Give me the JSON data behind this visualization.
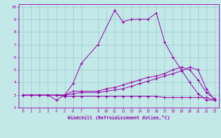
{
  "xlabel": "Windchill (Refroidissement éolien,°C)",
  "background_color": "#c2e8e8",
  "grid_color": "#a0cccc",
  "line_color": "#9900aa",
  "marker": "+",
  "xlim": [
    -0.5,
    23.5
  ],
  "ylim": [
    2,
    10.2
  ],
  "xticks": [
    0,
    1,
    2,
    3,
    4,
    5,
    6,
    7,
    9,
    10,
    11,
    12,
    13,
    14,
    15,
    16,
    17,
    18,
    19,
    20,
    21,
    22,
    23
  ],
  "yticks": [
    2,
    3,
    4,
    5,
    6,
    7,
    8,
    9,
    10
  ],
  "lines": [
    {
      "x": [
        0,
        1,
        2,
        3,
        4,
        5,
        6,
        7,
        9,
        11,
        12,
        13,
        14,
        15,
        16,
        17,
        18,
        19,
        20,
        21,
        22,
        23
      ],
      "y": [
        3.0,
        3.0,
        3.0,
        3.0,
        2.6,
        3.0,
        3.9,
        5.5,
        7.0,
        9.7,
        8.8,
        9.0,
        9.0,
        9.0,
        9.5,
        7.2,
        6.0,
        5.0,
        4.0,
        3.1,
        2.6,
        2.6
      ]
    },
    {
      "x": [
        0,
        1,
        2,
        3,
        4,
        5,
        6,
        7,
        9,
        10,
        11,
        12,
        13,
        14,
        15,
        16,
        17,
        18,
        19,
        20,
        21,
        22,
        23
      ],
      "y": [
        3.0,
        3.0,
        3.0,
        3.0,
        3.0,
        3.0,
        3.3,
        3.3,
        3.3,
        3.5,
        3.6,
        3.8,
        4.0,
        4.2,
        4.4,
        4.5,
        4.7,
        5.0,
        5.2,
        5.0,
        4.2,
        3.2,
        2.7
      ]
    },
    {
      "x": [
        0,
        1,
        2,
        3,
        4,
        5,
        6,
        7,
        9,
        10,
        11,
        12,
        13,
        14,
        15,
        16,
        17,
        18,
        19,
        20,
        21,
        22,
        23
      ],
      "y": [
        3.0,
        3.0,
        3.0,
        3.0,
        3.0,
        3.0,
        3.1,
        3.2,
        3.2,
        3.3,
        3.4,
        3.5,
        3.7,
        3.9,
        4.1,
        4.3,
        4.5,
        4.7,
        4.9,
        5.2,
        5.0,
        3.5,
        2.6
      ]
    },
    {
      "x": [
        0,
        1,
        2,
        3,
        4,
        5,
        6,
        7,
        9,
        10,
        11,
        12,
        13,
        14,
        15,
        16,
        17,
        18,
        19,
        20,
        21,
        22,
        23
      ],
      "y": [
        3.0,
        3.0,
        3.0,
        3.0,
        3.0,
        2.9,
        2.9,
        2.9,
        2.9,
        2.9,
        2.9,
        2.9,
        2.9,
        2.9,
        2.9,
        2.9,
        2.8,
        2.8,
        2.8,
        2.8,
        2.8,
        2.8,
        2.6
      ]
    }
  ]
}
